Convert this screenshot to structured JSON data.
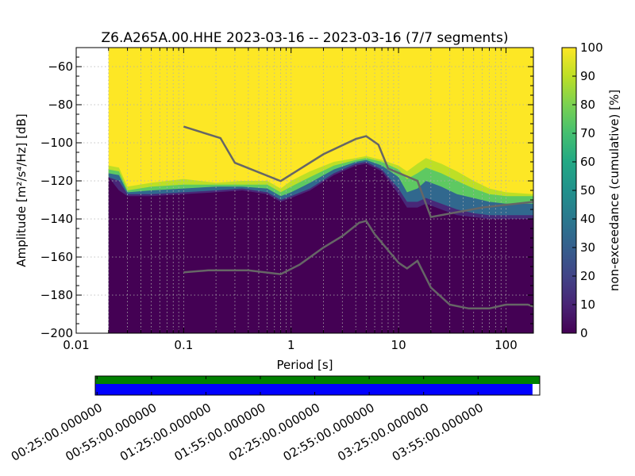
{
  "chart_data": [
    {
      "type": "heatmap",
      "title": "Z6.A265A.00.HHE   2023-03-16 -- 2023-03-16  (7/7 segments)",
      "xlabel": "Period [s]",
      "ylabel": "Amplitude [m²/s⁴/Hz] [dB]",
      "x_scale": "log",
      "xlim": [
        0.01,
        180
      ],
      "ylim": [
        -200,
        -50
      ],
      "x_ticks": [
        0.01,
        0.1,
        1,
        10,
        100
      ],
      "x_tick_labels": [
        "0.01",
        "0.1",
        "1",
        "10",
        "100"
      ],
      "y_ticks": [
        -200,
        -180,
        -160,
        -140,
        -120,
        -100,
        -80,
        -60
      ],
      "y_tick_labels": [
        "−200",
        "−180",
        "−160",
        "−140",
        "−120",
        "−100",
        "−80",
        "−60"
      ],
      "grid": true,
      "colorbar": {
        "label": "non-exceedance (cumulative) [%]",
        "range": [
          0,
          100
        ],
        "ticks": [
          0,
          10,
          20,
          30,
          40,
          50,
          60,
          70,
          80,
          90,
          100
        ],
        "tick_labels": [
          "0",
          "10",
          "20",
          "30",
          "40",
          "50",
          "60",
          "70",
          "80",
          "90",
          "100"
        ],
        "colormap": "viridis"
      },
      "data_start_period": 0.02,
      "psd_distribution": {
        "period": [
          0.02,
          0.025,
          0.03,
          0.05,
          0.1,
          0.2,
          0.35,
          0.6,
          0.8,
          1.0,
          1.5,
          2.5,
          4.0,
          5.0,
          7.0,
          10,
          12,
          15,
          18,
          25,
          35,
          50,
          70,
          100,
          180
        ],
        "dark_top_db": [
          -118,
          -125,
          -128,
          -128,
          -127,
          -126,
          -125,
          -127,
          -131,
          -129,
          -125,
          -117,
          -112,
          -111,
          -115,
          -127,
          -134,
          -134,
          -132,
          -135,
          -138,
          -139,
          -140,
          -140,
          -140
        ],
        "low_percentile_db": [
          -118,
          -120,
          -127,
          -127,
          -126,
          -125,
          -124,
          -126,
          -130,
          -128,
          -124,
          -116,
          -111,
          -110,
          -114,
          -124,
          -131,
          -131,
          -129,
          -132,
          -135,
          -137,
          -138,
          -138,
          -138
        ],
        "mid_percentile_db": [
          -116,
          -117,
          -126,
          -125,
          -124,
          -123,
          -123,
          -124,
          -128,
          -126,
          -121,
          -114,
          -110,
          -109,
          -112,
          -118,
          -126,
          -124,
          -120,
          -123,
          -127,
          -129,
          -131,
          -132,
          -132
        ],
        "high_percentile_db": [
          -114,
          -115,
          -125,
          -123,
          -122,
          -122,
          -122,
          -122,
          -126,
          -123,
          -118,
          -112,
          -109,
          -108,
          -110,
          -114,
          -119,
          -116,
          -113,
          -116,
          -120,
          -124,
          -127,
          -128,
          -128
        ],
        "top_percentile_db": [
          -112,
          -113,
          -123,
          -121,
          -119,
          -121,
          -120,
          -120,
          -124,
          -120,
          -115,
          -110,
          -108,
          -107,
          -109,
          -112,
          -115,
          -111,
          -108,
          -111,
          -115,
          -120,
          -124,
          -126,
          -127
        ]
      },
      "series": [
        {
          "x": [
            0.1,
            0.22,
            0.3,
            0.8,
            2.0,
            4.0,
            5.0,
            6.5,
            8.0,
            15,
            20,
            60,
            180
          ],
          "y": [
            -91.5,
            -97.5,
            -110.5,
            -120.1,
            -106,
            -98,
            -96.5,
            -101,
            -113.5,
            -120,
            -139,
            -134,
            -131
          ]
        },
        {
          "x": [
            0.1,
            0.17,
            0.4,
            0.8,
            1.2,
            2.0,
            3.0,
            4.3,
            5.0,
            6.0,
            10,
            12,
            15,
            20,
            30,
            45,
            70,
            100,
            160,
            180
          ],
          "y": [
            -168,
            -167,
            -167,
            -169,
            -164,
            -155,
            -149,
            -142,
            -141,
            -148,
            -163,
            -166,
            -162,
            -176,
            -185,
            -187,
            -187,
            -185,
            -185,
            -186
          ]
        }
      ]
    },
    {
      "type": "bar",
      "x_tick_labels": [
        "00:25:00.000000",
        "00:55:00.000000",
        "01:25:00.000000",
        "01:55:00.000000",
        "02:25:00.000000",
        "02:55:00.000000",
        "03:25:00.000000",
        "03:55:00.000000"
      ],
      "tick_minutes": [
        25,
        55,
        85,
        115,
        145,
        175,
        205,
        235
      ],
      "xlim_minutes": [
        24,
        269
      ],
      "data_coverage_minutes": [
        24,
        269
      ],
      "used_coverage_minutes": [
        24,
        265
      ],
      "colors": {
        "coverage": "#008000",
        "used": "#0000ff"
      }
    }
  ]
}
